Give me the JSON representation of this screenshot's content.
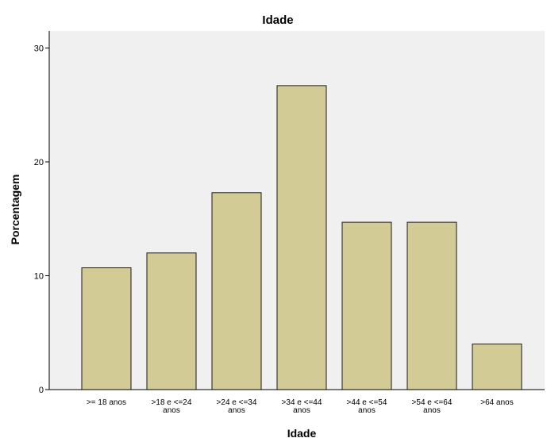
{
  "chart_data": {
    "type": "bar",
    "title": "Idade",
    "xlabel": "Idade",
    "ylabel": "Porcentagem",
    "categories": [
      [
        ">= 18 anos"
      ],
      [
        ">18 e <=24",
        "anos"
      ],
      [
        ">24 e <=34",
        "anos"
      ],
      [
        ">34 e <=44",
        "anos"
      ],
      [
        ">44 e <=54",
        "anos"
      ],
      [
        ">54 e <=64",
        "anos"
      ],
      [
        ">64 anos"
      ]
    ],
    "values": [
      10.7,
      12.0,
      17.3,
      26.7,
      14.7,
      14.7,
      4.0
    ],
    "ylim": [
      0,
      31.5
    ],
    "yticks": [
      0,
      10,
      20,
      30
    ],
    "grid": false,
    "colors": {
      "bar_fill": "#d3cb96",
      "bar_stroke": "#1a1a1a",
      "plot_background": "#f0f0f0",
      "axis": "#000000"
    }
  }
}
